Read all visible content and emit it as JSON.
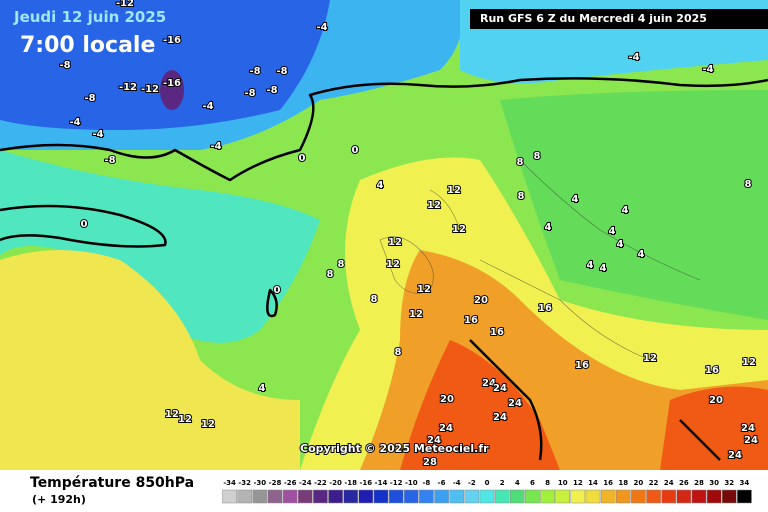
{
  "header": {
    "date": "Jeudi 12 juin 2025",
    "time": "7:00 locale",
    "run": "Run GFS 6 Z du Mercredi 4 juin 2025"
  },
  "map": {
    "contour_labels": [
      -12,
      -16,
      -8,
      -12,
      -12,
      -16,
      -8,
      -8,
      -8,
      -8,
      -8,
      -4,
      -4,
      -4,
      -8,
      -4,
      0,
      0,
      4,
      0,
      -4,
      -4,
      -4,
      8,
      8,
      8,
      12,
      12,
      8,
      4,
      4,
      4,
      4,
      4,
      4,
      4,
      4,
      12,
      12,
      12,
      8,
      8,
      12,
      8,
      20,
      16,
      16,
      16,
      12,
      8,
      0,
      4,
      16,
      12,
      12,
      16,
      20,
      24,
      24,
      20,
      24,
      24,
      24,
      24,
      24,
      24,
      24,
      28,
      12,
      12,
      12
    ],
    "copyright": "Copyright © 2025 Meteociel.fr"
  },
  "legend": {
    "title": "Température 850hPa",
    "lead": "(+ 192h)",
    "ticks": [
      -34,
      -32,
      -30,
      -28,
      -26,
      -24,
      -22,
      -20,
      -18,
      -16,
      -14,
      -12,
      -10,
      -8,
      -6,
      -4,
      -2,
      0,
      2,
      4,
      6,
      8,
      10,
      12,
      14,
      16,
      18,
      20,
      22,
      24,
      26,
      28,
      30,
      32,
      34
    ],
    "colors": [
      "#d0d0d0",
      "#b4b4b4",
      "#969696",
      "#8c648c",
      "#a050a0",
      "#783c78",
      "#5a2882",
      "#3c1e8c",
      "#2828a0",
      "#1e1eb4",
      "#1432c8",
      "#1e50dc",
      "#2864e6",
      "#3282f0",
      "#3ca0f0",
      "#50bef0",
      "#64d2f0",
      "#50e6e6",
      "#46e6b4",
      "#50dc78",
      "#78e650",
      "#a0f03c",
      "#c8f03c",
      "#f0f050",
      "#f0dc3c",
      "#f0b428",
      "#f0961e",
      "#f07814",
      "#f05a14",
      "#e63c14",
      "#d22814",
      "#be1414",
      "#a00a0a",
      "#780a0a",
      "#000000"
    ]
  }
}
